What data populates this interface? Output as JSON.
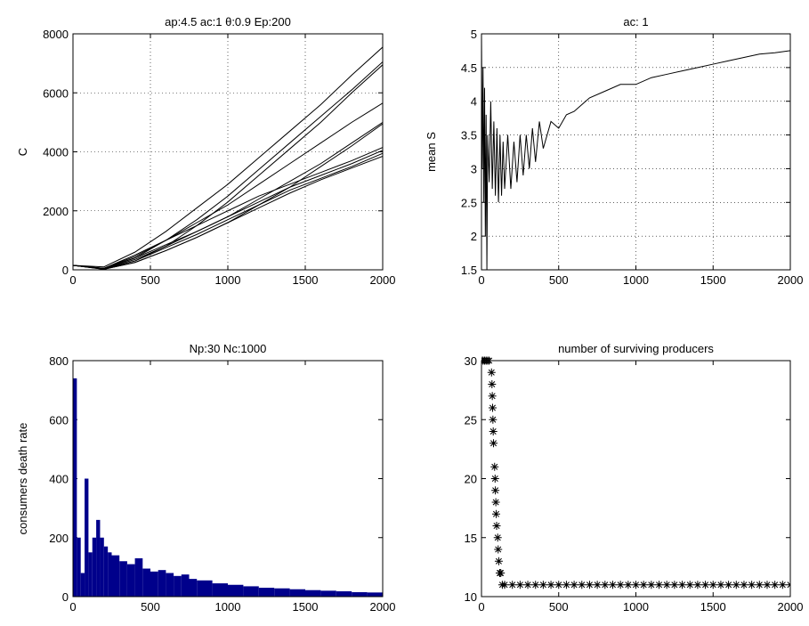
{
  "chart_data": [
    {
      "type": "line",
      "title": "ap:4.5 ac:1 θ:0.9 Ep:200",
      "ylabel": "C",
      "x": [
        0,
        200,
        400,
        600,
        800,
        1000,
        1200,
        1400,
        1600,
        1800,
        2000
      ],
      "series": [
        {
          "color": "#000000",
          "values": [
            150,
            100,
            600,
            1300,
            2100,
            2900,
            3800,
            4700,
            5600,
            6600,
            7550
          ]
        },
        {
          "color": "#000000",
          "values": [
            150,
            50,
            400,
            1000,
            1700,
            2500,
            3400,
            4300,
            5200,
            6100,
            7050
          ]
        },
        {
          "color": "#000000",
          "values": [
            150,
            30,
            300,
            800,
            1500,
            2300,
            3200,
            4100,
            5000,
            6000,
            6950
          ]
        },
        {
          "color": "#000000",
          "values": [
            150,
            50,
            450,
            1000,
            1600,
            2200,
            2900,
            3600,
            4300,
            5000,
            5650
          ]
        },
        {
          "color": "#000000",
          "values": [
            150,
            30,
            350,
            800,
            1300,
            1800,
            2400,
            3000,
            3600,
            4300,
            5000
          ]
        },
        {
          "color": "#000000",
          "values": [
            150,
            20,
            250,
            650,
            1100,
            1600,
            2200,
            2800,
            3500,
            4200,
            4950
          ]
        },
        {
          "color": "#000000",
          "values": [
            150,
            50,
            500,
            1000,
            1500,
            2000,
            2500,
            2900,
            3300,
            3700,
            4150
          ]
        },
        {
          "color": "#000000",
          "values": [
            150,
            40,
            400,
            850,
            1300,
            1800,
            2300,
            2800,
            3200,
            3600,
            4050
          ]
        },
        {
          "color": "#000000",
          "values": [
            150,
            30,
            300,
            750,
            1200,
            1700,
            2200,
            2700,
            3100,
            3500,
            3950
          ]
        },
        {
          "color": "#000000",
          "values": [
            150,
            20,
            250,
            650,
            1100,
            1600,
            2100,
            2600,
            3050,
            3450,
            3850
          ]
        }
      ],
      "xlim": [
        0,
        2000
      ],
      "xticks": [
        0,
        500,
        1000,
        1500,
        2000
      ],
      "ylim": [
        0,
        8000
      ],
      "yticks": [
        0,
        2000,
        4000,
        6000,
        8000
      ],
      "grid": true
    },
    {
      "type": "line",
      "title": "ac: 1",
      "ylabel": "mean S",
      "x": [
        0,
        5,
        10,
        15,
        20,
        25,
        30,
        35,
        40,
        50,
        60,
        70,
        80,
        90,
        100,
        110,
        120,
        130,
        140,
        150,
        170,
        190,
        210,
        230,
        250,
        270,
        290,
        310,
        330,
        350,
        375,
        400,
        450,
        500,
        550,
        600,
        650,
        700,
        800,
        900,
        1000,
        1100,
        1200,
        1300,
        1400,
        1500,
        1600,
        1700,
        1800,
        1900,
        2000
      ],
      "series": [
        {
          "color": "#000000",
          "values": [
            5,
            3.0,
            4.5,
            2.5,
            4.2,
            2.0,
            3.8,
            1.5,
            3.5,
            2.8,
            4.0,
            2.7,
            3.7,
            2.6,
            3.6,
            2.5,
            3.5,
            2.6,
            3.4,
            2.7,
            3.5,
            2.7,
            3.4,
            2.8,
            3.5,
            2.9,
            3.5,
            3.0,
            3.6,
            3.1,
            3.7,
            3.3,
            3.7,
            3.6,
            3.8,
            3.85,
            3.95,
            4.05,
            4.15,
            4.25,
            4.25,
            4.35,
            4.4,
            4.45,
            4.5,
            4.55,
            4.6,
            4.65,
            4.7,
            4.72,
            4.75
          ]
        }
      ],
      "xlim": [
        0,
        2000
      ],
      "xticks": [
        0,
        500,
        1000,
        1500,
        2000
      ],
      "ylim": [
        1.5,
        5
      ],
      "yticks": [
        1.5,
        2,
        2.5,
        3,
        3.5,
        4,
        4.5,
        5
      ],
      "grid": true
    },
    {
      "type": "bar",
      "title": "Np:30 Nc:1000",
      "ylabel": "consumers death rate",
      "x": [
        0,
        25,
        50,
        75,
        100,
        125,
        150,
        175,
        200,
        225,
        250,
        300,
        350,
        400,
        450,
        500,
        550,
        600,
        650,
        700,
        750,
        800,
        900,
        1000,
        1100,
        1200,
        1300,
        1400,
        1500,
        1600,
        1700,
        1800,
        1900,
        2000
      ],
      "values": [
        740,
        200,
        80,
        400,
        150,
        200,
        260,
        200,
        170,
        150,
        140,
        120,
        110,
        130,
        95,
        85,
        90,
        80,
        70,
        75,
        60,
        55,
        45,
        40,
        35,
        30,
        28,
        25,
        22,
        20,
        18,
        15,
        14,
        12
      ],
      "color": "#00008b",
      "xlim": [
        0,
        2000
      ],
      "xticks": [
        0,
        500,
        1000,
        1500,
        2000
      ],
      "ylim": [
        0,
        800
      ],
      "yticks": [
        0,
        200,
        400,
        600,
        800
      ],
      "grid": false
    },
    {
      "type": "scatter",
      "title": "number of surviving producers",
      "marker": "*",
      "color": "#000000",
      "x": [
        0,
        10,
        20,
        30,
        40,
        50,
        65,
        68,
        70,
        72,
        74,
        76,
        78,
        85,
        88,
        90,
        93,
        95,
        98,
        105,
        108,
        112,
        118,
        125,
        135,
        150,
        200,
        250,
        300,
        350,
        400,
        450,
        500,
        550,
        600,
        650,
        700,
        750,
        800,
        850,
        900,
        950,
        1000,
        1050,
        1100,
        1150,
        1200,
        1250,
        1300,
        1350,
        1400,
        1450,
        1500,
        1550,
        1600,
        1650,
        1700,
        1750,
        1800,
        1850,
        1900,
        1950,
        2000
      ],
      "values": [
        30,
        30,
        30,
        30,
        30,
        30,
        29,
        28,
        27,
        26,
        25,
        24,
        23,
        21,
        20,
        19,
        18,
        17,
        16,
        15,
        14,
        13,
        12,
        12,
        11,
        11,
        11,
        11,
        11,
        11,
        11,
        11,
        11,
        11,
        11,
        11,
        11,
        11,
        11,
        11,
        11,
        11,
        11,
        11,
        11,
        11,
        11,
        11,
        11,
        11,
        11,
        11,
        11,
        11,
        11,
        11,
        11,
        11,
        11,
        11,
        11,
        11,
        11
      ],
      "xlim": [
        0,
        2000
      ],
      "xticks": [
        0,
        500,
        1000,
        1500,
        2000
      ],
      "ylim": [
        10,
        30
      ],
      "yticks": [
        10,
        15,
        20,
        25,
        30
      ],
      "grid": false
    }
  ]
}
